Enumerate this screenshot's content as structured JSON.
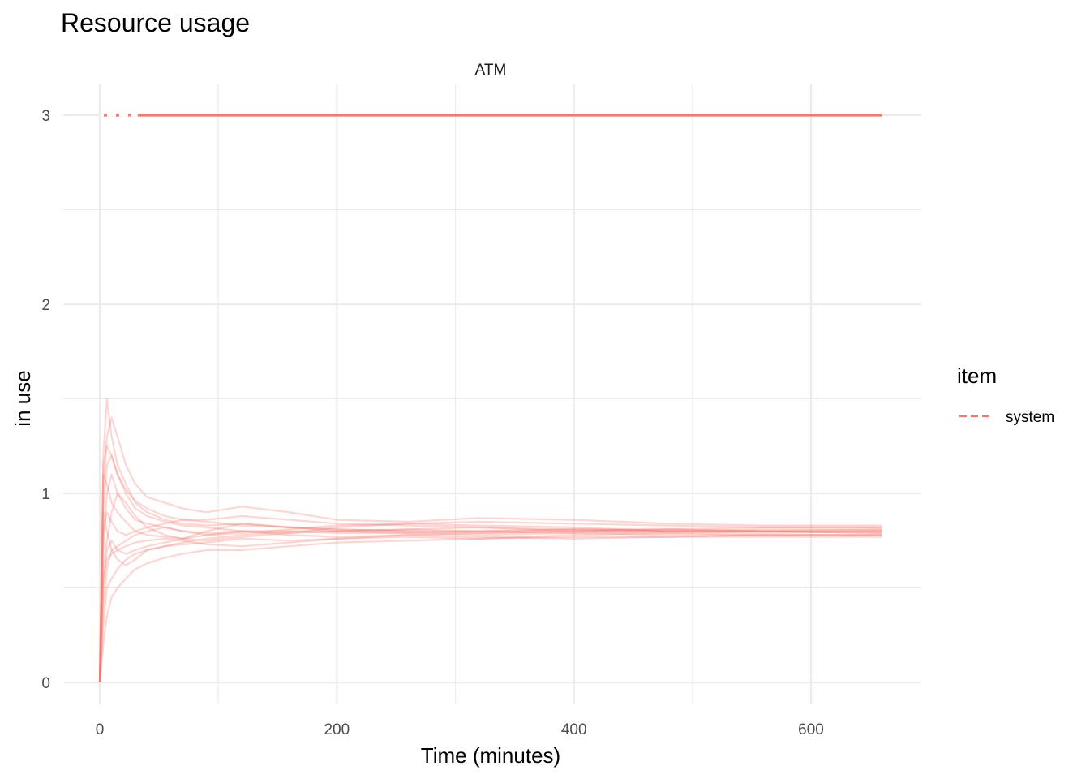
{
  "chart_data": {
    "type": "line",
    "title": "Resource usage",
    "facet": "ATM",
    "xlabel": "Time (minutes)",
    "ylabel": "in use",
    "xlim": [
      -30,
      690
    ],
    "ylim": [
      -0.12,
      3.15
    ],
    "x_ticks": [
      0,
      200,
      400,
      600
    ],
    "y_ticks": [
      0,
      1,
      2,
      3
    ],
    "grid": true,
    "legend": {
      "title": "item",
      "position": "right",
      "entries": [
        {
          "label": "system",
          "linetype": "dashed"
        }
      ]
    },
    "series_color": "#F8766D",
    "capacity": {
      "value": 3,
      "x": [
        0,
        660
      ],
      "linetype": "dashed"
    },
    "server_replications": [
      {
        "x": [
          0,
          3,
          6,
          10,
          15,
          22,
          30,
          40,
          55,
          70,
          90,
          120,
          160,
          200,
          260,
          320,
          400,
          480,
          560,
          660
        ],
        "y": [
          0,
          1.2,
          1.5,
          1.3,
          1.15,
          1.05,
          0.95,
          0.9,
          0.86,
          0.84,
          0.83,
          0.84,
          0.82,
          0.81,
          0.8,
          0.8,
          0.81,
          0.8,
          0.8,
          0.8
        ]
      },
      {
        "x": [
          0,
          3,
          6,
          10,
          15,
          22,
          30,
          40,
          55,
          70,
          90,
          120,
          160,
          200,
          260,
          320,
          400,
          480,
          560,
          660
        ],
        "y": [
          0,
          0.3,
          0.5,
          0.55,
          0.6,
          0.65,
          0.68,
          0.7,
          0.72,
          0.73,
          0.74,
          0.76,
          0.75,
          0.76,
          0.77,
          0.76,
          0.78,
          0.79,
          0.78,
          0.78
        ]
      },
      {
        "x": [
          0,
          3,
          6,
          10,
          15,
          22,
          30,
          40,
          55,
          70,
          90,
          120,
          160,
          200,
          260,
          320,
          400,
          480,
          560,
          660
        ],
        "y": [
          0,
          0.9,
          1.15,
          1.2,
          1.1,
          1.0,
          0.92,
          0.88,
          0.85,
          0.83,
          0.82,
          0.8,
          0.79,
          0.8,
          0.81,
          0.82,
          0.8,
          0.79,
          0.8,
          0.79
        ]
      },
      {
        "x": [
          0,
          3,
          6,
          10,
          15,
          22,
          30,
          40,
          55,
          70,
          90,
          120,
          160,
          200,
          260,
          320,
          400,
          480,
          560,
          660
        ],
        "y": [
          0,
          0.5,
          0.7,
          0.75,
          0.7,
          0.72,
          0.74,
          0.75,
          0.76,
          0.75,
          0.73,
          0.72,
          0.74,
          0.76,
          0.78,
          0.79,
          0.8,
          0.81,
          0.8,
          0.81
        ]
      },
      {
        "x": [
          0,
          3,
          6,
          10,
          15,
          22,
          30,
          40,
          55,
          70,
          90,
          120,
          160,
          200,
          260,
          320,
          400,
          480,
          560,
          660
        ],
        "y": [
          0,
          1.0,
          1.3,
          1.4,
          1.3,
          1.15,
          1.05,
          0.98,
          0.95,
          0.92,
          0.9,
          0.93,
          0.9,
          0.86,
          0.85,
          0.87,
          0.86,
          0.84,
          0.83,
          0.83
        ]
      },
      {
        "x": [
          0,
          3,
          6,
          10,
          15,
          22,
          30,
          40,
          55,
          70,
          90,
          120,
          160,
          200,
          260,
          320,
          400,
          480,
          560,
          660
        ],
        "y": [
          0,
          0.2,
          0.35,
          0.45,
          0.5,
          0.55,
          0.6,
          0.63,
          0.66,
          0.68,
          0.7,
          0.7,
          0.72,
          0.74,
          0.75,
          0.76,
          0.77,
          0.77,
          0.78,
          0.78
        ]
      },
      {
        "x": [
          0,
          3,
          6,
          10,
          15,
          22,
          30,
          40,
          55,
          70,
          90,
          120,
          160,
          200,
          260,
          320,
          400,
          480,
          560,
          660
        ],
        "y": [
          0,
          0.8,
          0.9,
          0.85,
          0.8,
          0.78,
          0.8,
          0.82,
          0.84,
          0.86,
          0.85,
          0.83,
          0.82,
          0.81,
          0.8,
          0.79,
          0.8,
          0.81,
          0.82,
          0.82
        ]
      },
      {
        "x": [
          0,
          3,
          6,
          10,
          15,
          22,
          30,
          40,
          55,
          70,
          90,
          120,
          160,
          200,
          260,
          320,
          400,
          480,
          560,
          660
        ],
        "y": [
          0,
          0.6,
          0.75,
          0.9,
          1.0,
          0.95,
          0.88,
          0.82,
          0.78,
          0.76,
          0.75,
          0.77,
          0.79,
          0.82,
          0.84,
          0.83,
          0.82,
          0.8,
          0.79,
          0.8
        ]
      },
      {
        "x": [
          0,
          3,
          6,
          10,
          15,
          22,
          30,
          40,
          55,
          70,
          90,
          120,
          160,
          200,
          260,
          320,
          400,
          480,
          560,
          660
        ],
        "y": [
          0,
          1.1,
          1.05,
          0.95,
          0.9,
          0.85,
          0.8,
          0.78,
          0.77,
          0.76,
          0.78,
          0.8,
          0.78,
          0.77,
          0.78,
          0.77,
          0.76,
          0.77,
          0.77,
          0.77
        ]
      },
      {
        "x": [
          0,
          3,
          6,
          10,
          15,
          22,
          30,
          40,
          55,
          70,
          90,
          120,
          160,
          200,
          260,
          320,
          400,
          480,
          560,
          660
        ],
        "y": [
          0,
          0.4,
          0.6,
          0.7,
          0.72,
          0.75,
          0.78,
          0.8,
          0.82,
          0.8,
          0.78,
          0.79,
          0.81,
          0.83,
          0.84,
          0.85,
          0.84,
          0.83,
          0.82,
          0.82
        ]
      },
      {
        "x": [
          0,
          3,
          6,
          10,
          15,
          22,
          30,
          40,
          55,
          70,
          90,
          120,
          160,
          200,
          260,
          320,
          400,
          480,
          560,
          660
        ],
        "y": [
          0,
          0.7,
          1.0,
          1.1,
          1.0,
          0.92,
          0.86,
          0.84,
          0.82,
          0.8,
          0.79,
          0.8,
          0.8,
          0.79,
          0.79,
          0.8,
          0.79,
          0.8,
          0.8,
          0.79
        ]
      },
      {
        "x": [
          0,
          3,
          6,
          10,
          15,
          22,
          30,
          40,
          55,
          70,
          90,
          120,
          160,
          200,
          260,
          320,
          400,
          480,
          560,
          660
        ],
        "y": [
          0,
          0.9,
          0.8,
          0.7,
          0.65,
          0.62,
          0.65,
          0.7,
          0.72,
          0.74,
          0.76,
          0.78,
          0.8,
          0.8,
          0.81,
          0.8,
          0.81,
          0.8,
          0.81,
          0.81
        ]
      },
      {
        "x": [
          0,
          3,
          6,
          10,
          15,
          22,
          30,
          40,
          55,
          70,
          90,
          120,
          160,
          200,
          260,
          320,
          400,
          480,
          560,
          660
        ],
        "y": [
          0,
          1.15,
          1.25,
          1.2,
          1.1,
          1.02,
          0.96,
          0.92,
          0.88,
          0.86,
          0.86,
          0.88,
          0.86,
          0.84,
          0.83,
          0.82,
          0.81,
          0.81,
          0.8,
          0.8
        ]
      },
      {
        "x": [
          0,
          3,
          6,
          10,
          15,
          22,
          30,
          40,
          55,
          70,
          90,
          120,
          160,
          200,
          260,
          320,
          400,
          480,
          560,
          660
        ],
        "y": [
          0,
          0.55,
          0.65,
          0.68,
          0.7,
          0.68,
          0.7,
          0.72,
          0.74,
          0.76,
          0.8,
          0.84,
          0.82,
          0.8,
          0.79,
          0.78,
          0.79,
          0.78,
          0.78,
          0.78
        ]
      }
    ]
  }
}
